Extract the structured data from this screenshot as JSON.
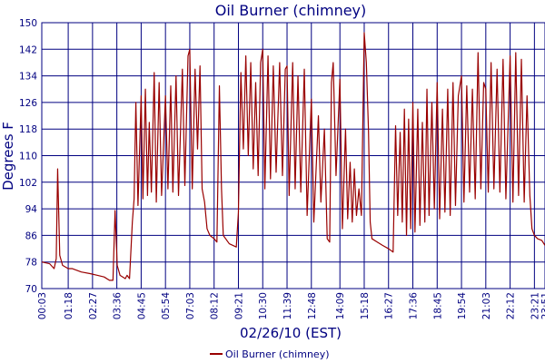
{
  "chart_data": {
    "type": "line",
    "title": "Oil Burner (chimney)",
    "xlabel": "02/26/10 (EST)",
    "ylabel": "Degrees F",
    "ylim": [
      70,
      150
    ],
    "yticks": [
      70,
      78,
      86,
      94,
      102,
      110,
      118,
      126,
      134,
      142,
      150
    ],
    "xlim": [
      "00:03",
      "23:51"
    ],
    "xticks": [
      "00:03",
      "01:18",
      "02:27",
      "03:36",
      "04:45",
      "05:54",
      "07:03",
      "08:12",
      "09:21",
      "10:30",
      "11:39",
      "12:48",
      "14:09",
      "15:18",
      "16:27",
      "17:36",
      "18:45",
      "19:54",
      "21:03",
      "22:12",
      "23:21",
      "23:51"
    ],
    "grid": true,
    "legend": "bottom-center",
    "series": [
      {
        "name": "Oil Burner (chimney)",
        "color": "#990000",
        "points": [
          [
            "00:03",
            78
          ],
          [
            "00:25",
            77.5
          ],
          [
            "00:38",
            76
          ],
          [
            "00:44",
            79
          ],
          [
            "00:48",
            106
          ],
          [
            "00:54",
            80
          ],
          [
            "01:02",
            77
          ],
          [
            "01:18",
            76
          ],
          [
            "01:30",
            76
          ],
          [
            "01:55",
            75
          ],
          [
            "02:20",
            74.5
          ],
          [
            "02:40",
            74
          ],
          [
            "03:00",
            73.5
          ],
          [
            "03:15",
            72.5
          ],
          [
            "03:25",
            72.5
          ],
          [
            "03:31",
            93.5
          ],
          [
            "03:37",
            77
          ],
          [
            "03:45",
            74
          ],
          [
            "04:00",
            73
          ],
          [
            "04:05",
            74
          ],
          [
            "04:12",
            73
          ],
          [
            "04:20",
            90
          ],
          [
            "04:25",
            97
          ],
          [
            "04:30",
            126
          ],
          [
            "04:36",
            95
          ],
          [
            "04:45",
            128
          ],
          [
            "04:50",
            97
          ],
          [
            "04:57",
            130
          ],
          [
            "05:03",
            98
          ],
          [
            "05:08",
            120
          ],
          [
            "05:14",
            99
          ],
          [
            "05:22",
            135
          ],
          [
            "05:28",
            96
          ],
          [
            "05:36",
            132
          ],
          [
            "05:43",
            98
          ],
          [
            "05:54",
            128
          ],
          [
            "06:01",
            100
          ],
          [
            "06:09",
            131
          ],
          [
            "06:15",
            99
          ],
          [
            "06:24",
            134
          ],
          [
            "06:31",
            98
          ],
          [
            "06:42",
            136
          ],
          [
            "06:49",
            101
          ],
          [
            "06:58",
            140
          ],
          [
            "07:03",
            142
          ],
          [
            "07:10",
            100
          ],
          [
            "07:18",
            136
          ],
          [
            "07:25",
            112
          ],
          [
            "07:32",
            137
          ],
          [
            "07:38",
            100
          ],
          [
            "07:45",
            96
          ],
          [
            "07:52",
            88
          ],
          [
            "08:00",
            86
          ],
          [
            "08:12",
            85
          ],
          [
            "08:20",
            84
          ],
          [
            "08:27",
            131
          ],
          [
            "08:33",
            100
          ],
          [
            "08:38",
            86
          ],
          [
            "08:55",
            83.5
          ],
          [
            "09:15",
            82.5
          ],
          [
            "09:21",
            93
          ],
          [
            "09:28",
            135
          ],
          [
            "09:35",
            112
          ],
          [
            "09:42",
            140
          ],
          [
            "09:49",
            110
          ],
          [
            "09:56",
            138
          ],
          [
            "10:03",
            106
          ],
          [
            "10:10",
            132
          ],
          [
            "10:17",
            104
          ],
          [
            "10:24",
            138
          ],
          [
            "10:30",
            142
          ],
          [
            "10:36",
            100
          ],
          [
            "10:45",
            140
          ],
          [
            "10:52",
            103
          ],
          [
            "11:00",
            137
          ],
          [
            "11:08",
            105
          ],
          [
            "11:18",
            138
          ],
          [
            "11:26",
            104
          ],
          [
            "11:34",
            136
          ],
          [
            "11:39",
            137
          ],
          [
            "11:45",
            98
          ],
          [
            "11:55",
            138
          ],
          [
            "12:02",
            100
          ],
          [
            "12:10",
            134
          ],
          [
            "12:18",
            99
          ],
          [
            "12:28",
            136
          ],
          [
            "12:36",
            92
          ],
          [
            "12:48",
            127
          ],
          [
            "12:55",
            90
          ],
          [
            "13:08",
            122
          ],
          [
            "13:15",
            96
          ],
          [
            "13:25",
            118
          ],
          [
            "13:33",
            85
          ],
          [
            "13:40",
            84
          ],
          [
            "13:45",
            132
          ],
          [
            "13:50",
            138
          ],
          [
            "13:58",
            104
          ],
          [
            "14:09",
            133
          ],
          [
            "14:16",
            88
          ],
          [
            "14:25",
            118
          ],
          [
            "14:31",
            91
          ],
          [
            "14:38",
            108
          ],
          [
            "14:44",
            90
          ],
          [
            "14:50",
            106
          ],
          [
            "14:56",
            92
          ],
          [
            "15:03",
            100
          ],
          [
            "15:10",
            92
          ],
          [
            "15:18",
            147
          ],
          [
            "15:24",
            138
          ],
          [
            "15:30",
            118
          ],
          [
            "15:35",
            90
          ],
          [
            "15:40",
            85
          ],
          [
            "15:55",
            84
          ],
          [
            "16:10",
            83
          ],
          [
            "16:27",
            82
          ],
          [
            "16:40",
            81
          ],
          [
            "16:47",
            119
          ],
          [
            "16:53",
            92
          ],
          [
            "17:00",
            117
          ],
          [
            "17:06",
            90
          ],
          [
            "17:12",
            124
          ],
          [
            "17:18",
            86
          ],
          [
            "17:24",
            121
          ],
          [
            "17:30",
            88
          ],
          [
            "17:36",
            126
          ],
          [
            "17:42",
            87
          ],
          [
            "17:50",
            124
          ],
          [
            "17:56",
            89
          ],
          [
            "18:03",
            120
          ],
          [
            "18:10",
            90
          ],
          [
            "18:16",
            130
          ],
          [
            "18:22",
            92
          ],
          [
            "18:30",
            126
          ],
          [
            "18:37",
            94
          ],
          [
            "18:45",
            132
          ],
          [
            "18:52",
            91
          ],
          [
            "19:00",
            124
          ],
          [
            "19:07",
            93
          ],
          [
            "19:15",
            130
          ],
          [
            "19:22",
            92
          ],
          [
            "19:30",
            132
          ],
          [
            "19:37",
            95
          ],
          [
            "19:45",
            128
          ],
          [
            "19:54",
            134
          ],
          [
            "20:01",
            96
          ],
          [
            "20:09",
            131
          ],
          [
            "20:17",
            99
          ],
          [
            "20:25",
            130
          ],
          [
            "20:33",
            97
          ],
          [
            "20:41",
            141
          ],
          [
            "20:49",
            100
          ],
          [
            "20:57",
            132
          ],
          [
            "21:03",
            130
          ],
          [
            "21:10",
            99
          ],
          [
            "21:18",
            138
          ],
          [
            "21:26",
            100
          ],
          [
            "21:35",
            136
          ],
          [
            "21:43",
            99
          ],
          [
            "21:52",
            139
          ],
          [
            "22:00",
            97
          ],
          [
            "22:12",
            140
          ],
          [
            "22:20",
            96
          ],
          [
            "22:28",
            141
          ],
          [
            "22:36",
            98
          ],
          [
            "22:44",
            139
          ],
          [
            "22:52",
            96
          ],
          [
            "23:00",
            128
          ],
          [
            "23:08",
            98
          ],
          [
            "23:14",
            88
          ],
          [
            "23:21",
            86
          ],
          [
            "23:30",
            85
          ],
          [
            "23:42",
            84.5
          ],
          [
            "23:51",
            83
          ]
        ]
      }
    ]
  }
}
